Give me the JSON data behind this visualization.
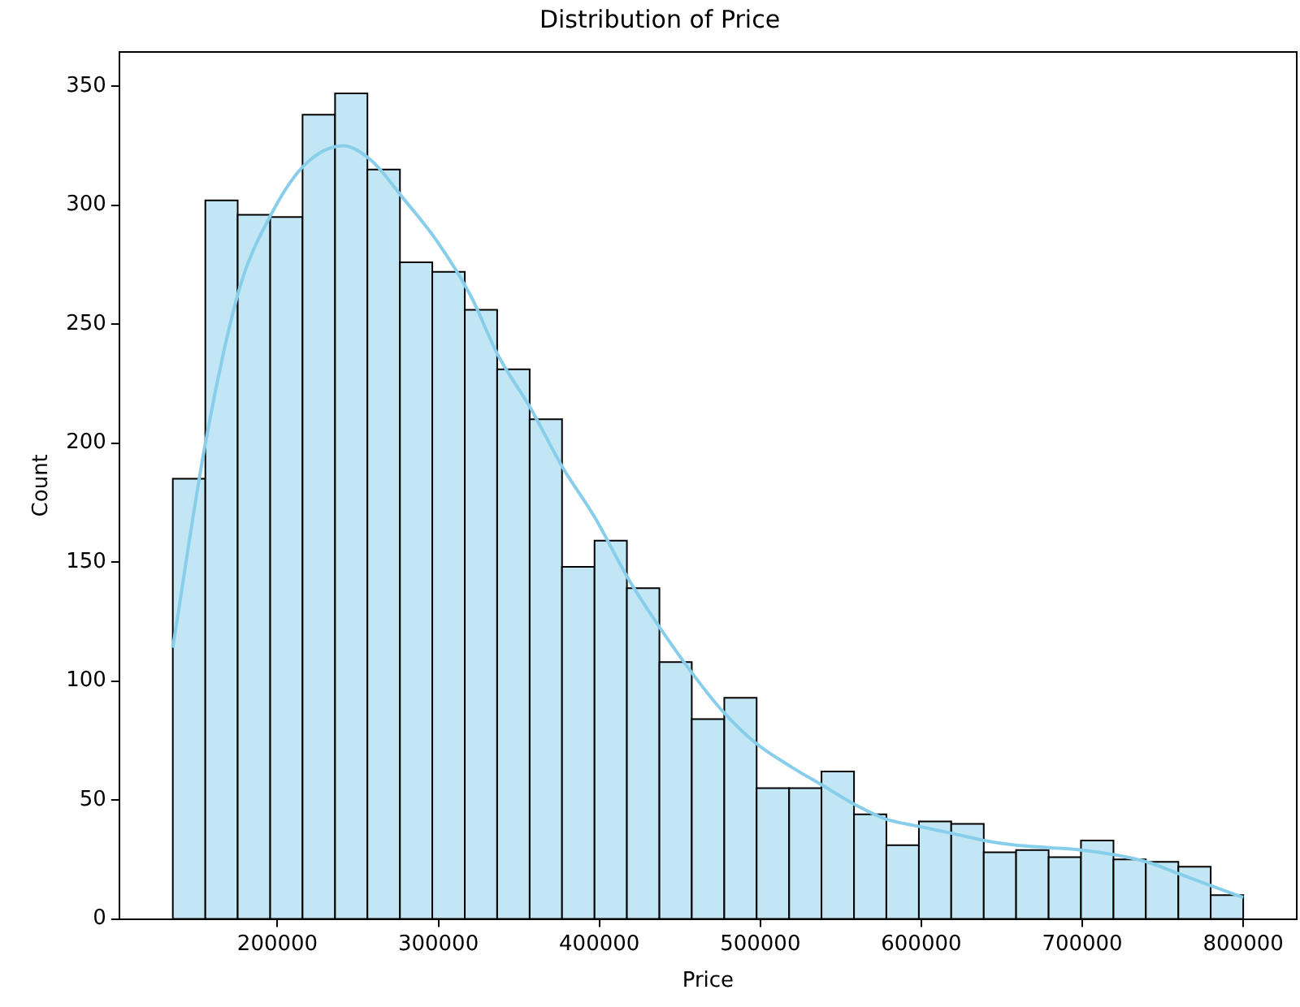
{
  "chart_data": {
    "type": "histogram",
    "title": "Distribution of Price",
    "xlabel": "Price",
    "ylabel": "Count",
    "bins": [
      135000,
      155200,
      175300,
      195500,
      215600,
      235800,
      255900,
      276100,
      296200,
      316400,
      336500,
      356700,
      376800,
      397000,
      417100,
      437300,
      457400,
      477600,
      497700,
      517900,
      538000,
      558200,
      578300,
      598500,
      618600,
      638800,
      658900,
      679100,
      699200,
      719400,
      739500,
      759700,
      779800,
      800000
    ],
    "series": [
      {
        "type": "histogram",
        "color": "#c3e6f5",
        "values": [
          185,
          302,
          296,
          295,
          338,
          347,
          315,
          276,
          272,
          256,
          231,
          210,
          148,
          159,
          139,
          108,
          84,
          93,
          55,
          55,
          62,
          44,
          31,
          41,
          40,
          28,
          29,
          26,
          33,
          25,
          24,
          22,
          10
        ]
      },
      {
        "type": "line",
        "color": "#87ceeb",
        "x": [
          135000,
          155000,
          176000,
          196000,
          217000,
          241000,
          258000,
          278000,
          299000,
          320000,
          337000,
          357000,
          377000,
          397000,
          418000,
          438000,
          458000,
          477000,
          497000,
          519000,
          539000,
          559000,
          578000,
          598000,
          619000,
          639000,
          659000,
          679000,
          699000,
          720000,
          740000,
          760000,
          780000,
          800000
        ],
        "values": [
          114,
          199,
          264,
          296,
          317,
          325,
          319,
          303,
          285,
          262,
          237,
          215,
          190,
          169,
          143,
          122,
          103,
          87,
          74,
          64,
          56,
          48,
          42,
          39,
          36,
          33,
          31,
          30,
          29,
          27,
          24,
          19,
          14,
          9
        ]
      }
    ],
    "xlim": [
      101750,
      833250
    ],
    "xticks": [
      200000,
      300000,
      400000,
      500000,
      600000,
      700000,
      800000
    ],
    "ylim": [
      0,
      364.4
    ],
    "yticks": [
      0,
      50,
      100,
      150,
      200,
      250,
      300,
      350
    ],
    "grid": false,
    "legend": false
  }
}
